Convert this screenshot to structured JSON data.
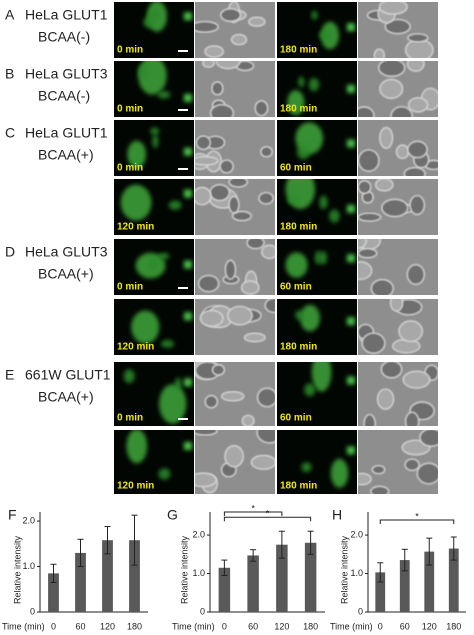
{
  "panels": [
    {
      "letter": "A",
      "line1": "HeLa GLUT1",
      "line2": "BCAA(-)",
      "rows": [
        [
          "0 min",
          "180 min"
        ]
      ]
    },
    {
      "letter": "B",
      "line1": "HeLa GLUT3",
      "line2": "BCAA(-)",
      "rows": [
        [
          "0 min",
          "180 min"
        ]
      ]
    },
    {
      "letter": "C",
      "line1": "HeLa GLUT1",
      "line2": "BCAA(+)",
      "rows": [
        [
          "0 min",
          "60 min"
        ],
        [
          "120 min",
          "180 min"
        ]
      ]
    },
    {
      "letter": "D",
      "line1": "HeLa GLUT3",
      "line2": "BCAA(+)",
      "rows": [
        [
          "0 min",
          "60 min"
        ],
        [
          "120 min",
          "180 min"
        ]
      ]
    },
    {
      "letter": "E",
      "line1": "661W GLUT1",
      "line2": "BCAA(+)",
      "rows": [
        [
          "0 min",
          "60 min"
        ],
        [
          "120 min",
          "180 min"
        ]
      ]
    }
  ],
  "chart_data": [
    {
      "type": "bar",
      "label": "F",
      "ylabel": "Relative intensity",
      "xlabel": "Time (min)",
      "categories": [
        "0",
        "60",
        "120",
        "180"
      ],
      "values": [
        0.85,
        1.3,
        1.58,
        1.58
      ],
      "errors": [
        0.2,
        0.3,
        0.3,
        0.55
      ],
      "color": "#595959",
      "ylim": [
        0,
        2.2
      ],
      "yticks": [
        0,
        {
          "value": 1,
          "label": "1.0"
        },
        {
          "value": 2,
          "label": "2.0"
        }
      ],
      "annotations": []
    },
    {
      "type": "bar",
      "label": "G",
      "ylabel": "Relative intensity",
      "xlabel": "Time (min)",
      "categories": [
        "0",
        "60",
        "120",
        "180"
      ],
      "values": [
        1.15,
        1.47,
        1.75,
        1.8
      ],
      "errors": [
        0.2,
        0.15,
        0.35,
        0.3
      ],
      "color": "#595959",
      "ylim": [
        0,
        2.6
      ],
      "yticks": [
        0,
        {
          "value": 1,
          "label": "1.0"
        },
        {
          "value": 2,
          "label": "2.0"
        }
      ],
      "annotations": [
        {
          "text": "*",
          "from": "0",
          "to": "120"
        },
        {
          "text": "*",
          "from": "0",
          "to": "180"
        }
      ]
    },
    {
      "type": "bar",
      "label": "H",
      "ylabel": "Relative intensity",
      "xlabel": "Time (min)",
      "categories": [
        "0",
        "60",
        "120",
        "180"
      ],
      "values": [
        1.03,
        1.35,
        1.57,
        1.65
      ],
      "errors": [
        0.25,
        0.28,
        0.35,
        0.3
      ],
      "color": "#595959",
      "ylim": [
        0,
        2.6
      ],
      "yticks": [
        0,
        {
          "value": 1,
          "label": "1.0"
        },
        {
          "value": 2,
          "label": "2.0"
        }
      ],
      "annotations": [
        {
          "text": "*",
          "from": "0",
          "to": "180"
        }
      ]
    }
  ]
}
